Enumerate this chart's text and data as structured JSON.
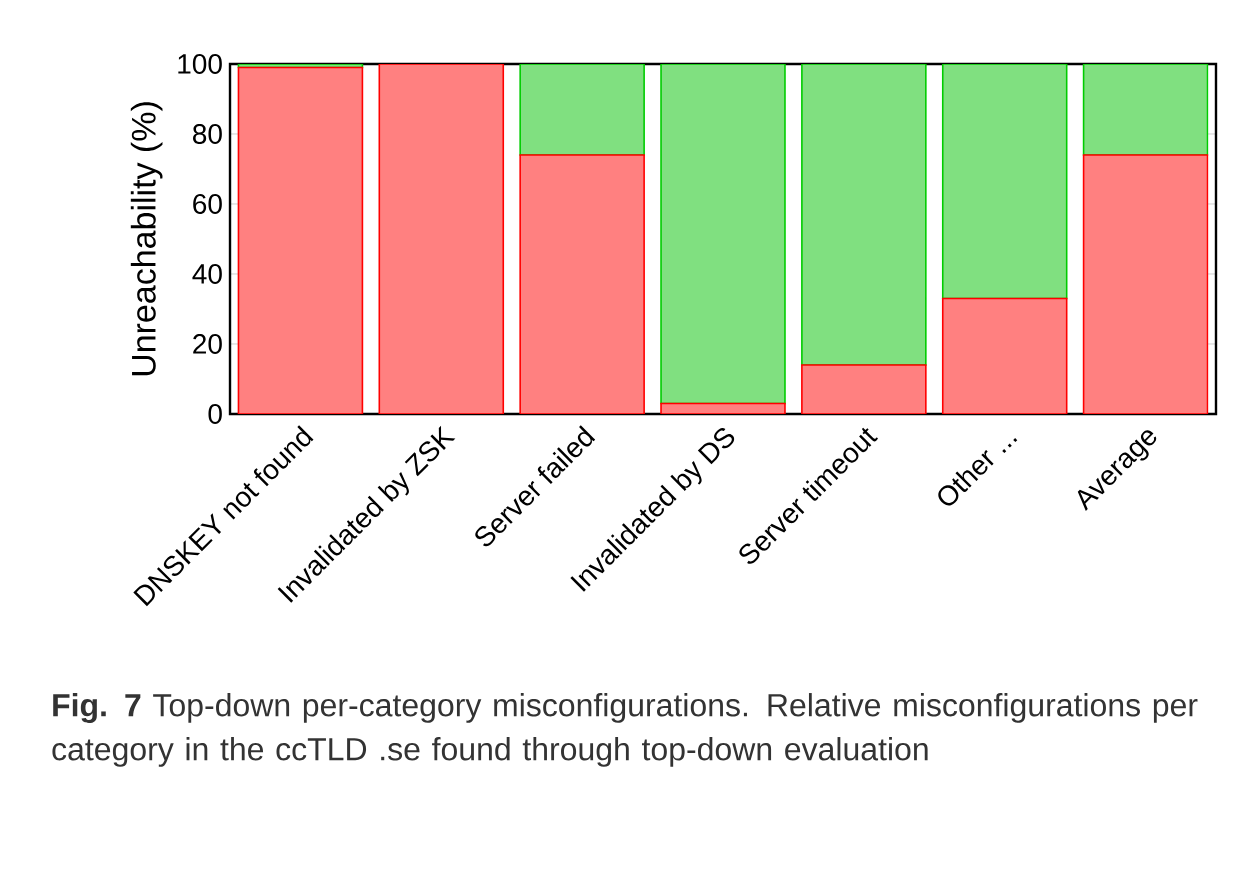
{
  "chart_data": {
    "type": "bar",
    "stacked": true,
    "ylabel": "Unreachability (%)",
    "categories": [
      "DNSKEY not found",
      "Invalidated by ZSK",
      "Server failed",
      "Invalidated by DS",
      "Server timeout",
      "Other ...",
      "Average"
    ],
    "series": [
      {
        "color": "#ff8080",
        "values": [
          99,
          100,
          74,
          3,
          14,
          33,
          74
        ]
      },
      {
        "color": "#80e080",
        "values": [
          1,
          0,
          26,
          97,
          86,
          67,
          26
        ]
      }
    ],
    "ylim": [
      0,
      100
    ],
    "yticks": [
      0,
      20,
      40,
      60,
      80,
      100
    ],
    "annotations": [
      "**Fig. 7** Top-down per-category misconfigurations. Relative misconfigurations per category in the ccTLD .se found through top-down evaluation"
    ]
  }
}
